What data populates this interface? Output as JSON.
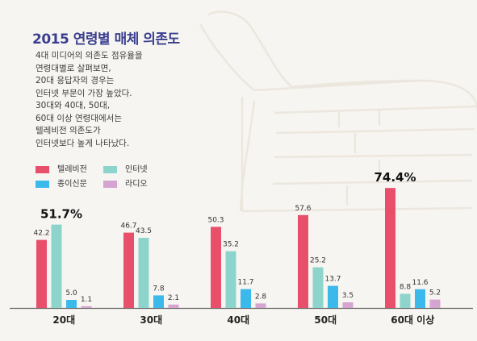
{
  "title": "2015 연령별 매체 의존도",
  "description": [
    "4대 미디어의 의존도 점유율을",
    "연령대별로 살펴보면,",
    "20대 응답자의 경우는",
    "인터넷 부문이 가장 높았다.",
    "30대와 40대, 50대,",
    "60대 이상 연령대에서는",
    "텔레비전 의존도가",
    "인터넷보다 높게 나타났다."
  ],
  "chart_data": {
    "type": "bar",
    "categories": [
      "20대",
      "30대",
      "40대",
      "50대",
      "60대 이상"
    ],
    "series": [
      {
        "name": "텔레비전",
        "color": "#e84f6a",
        "values": [
          42.2,
          46.7,
          50.3,
          57.6,
          74.4
        ]
      },
      {
        "name": "인터넷",
        "color": "#8dd5cc",
        "values": [
          51.7,
          43.5,
          35.2,
          25.2,
          8.8
        ]
      },
      {
        "name": "종이신문",
        "color": "#3bb9eb",
        "values": [
          5.0,
          7.8,
          11.7,
          13.7,
          11.6
        ]
      },
      {
        "name": "라디오",
        "color": "#d6a4d0",
        "values": [
          1.1,
          2.1,
          2.8,
          3.5,
          5.2
        ]
      }
    ],
    "highlights": [
      {
        "category": "20대",
        "series": "인터넷",
        "label": "51.7%"
      },
      {
        "category": "60대 이상",
        "series": "텔레비전",
        "label": "74.4%"
      }
    ],
    "ylim": [
      0,
      80
    ],
    "grid": false,
    "legend": "top-left"
  }
}
